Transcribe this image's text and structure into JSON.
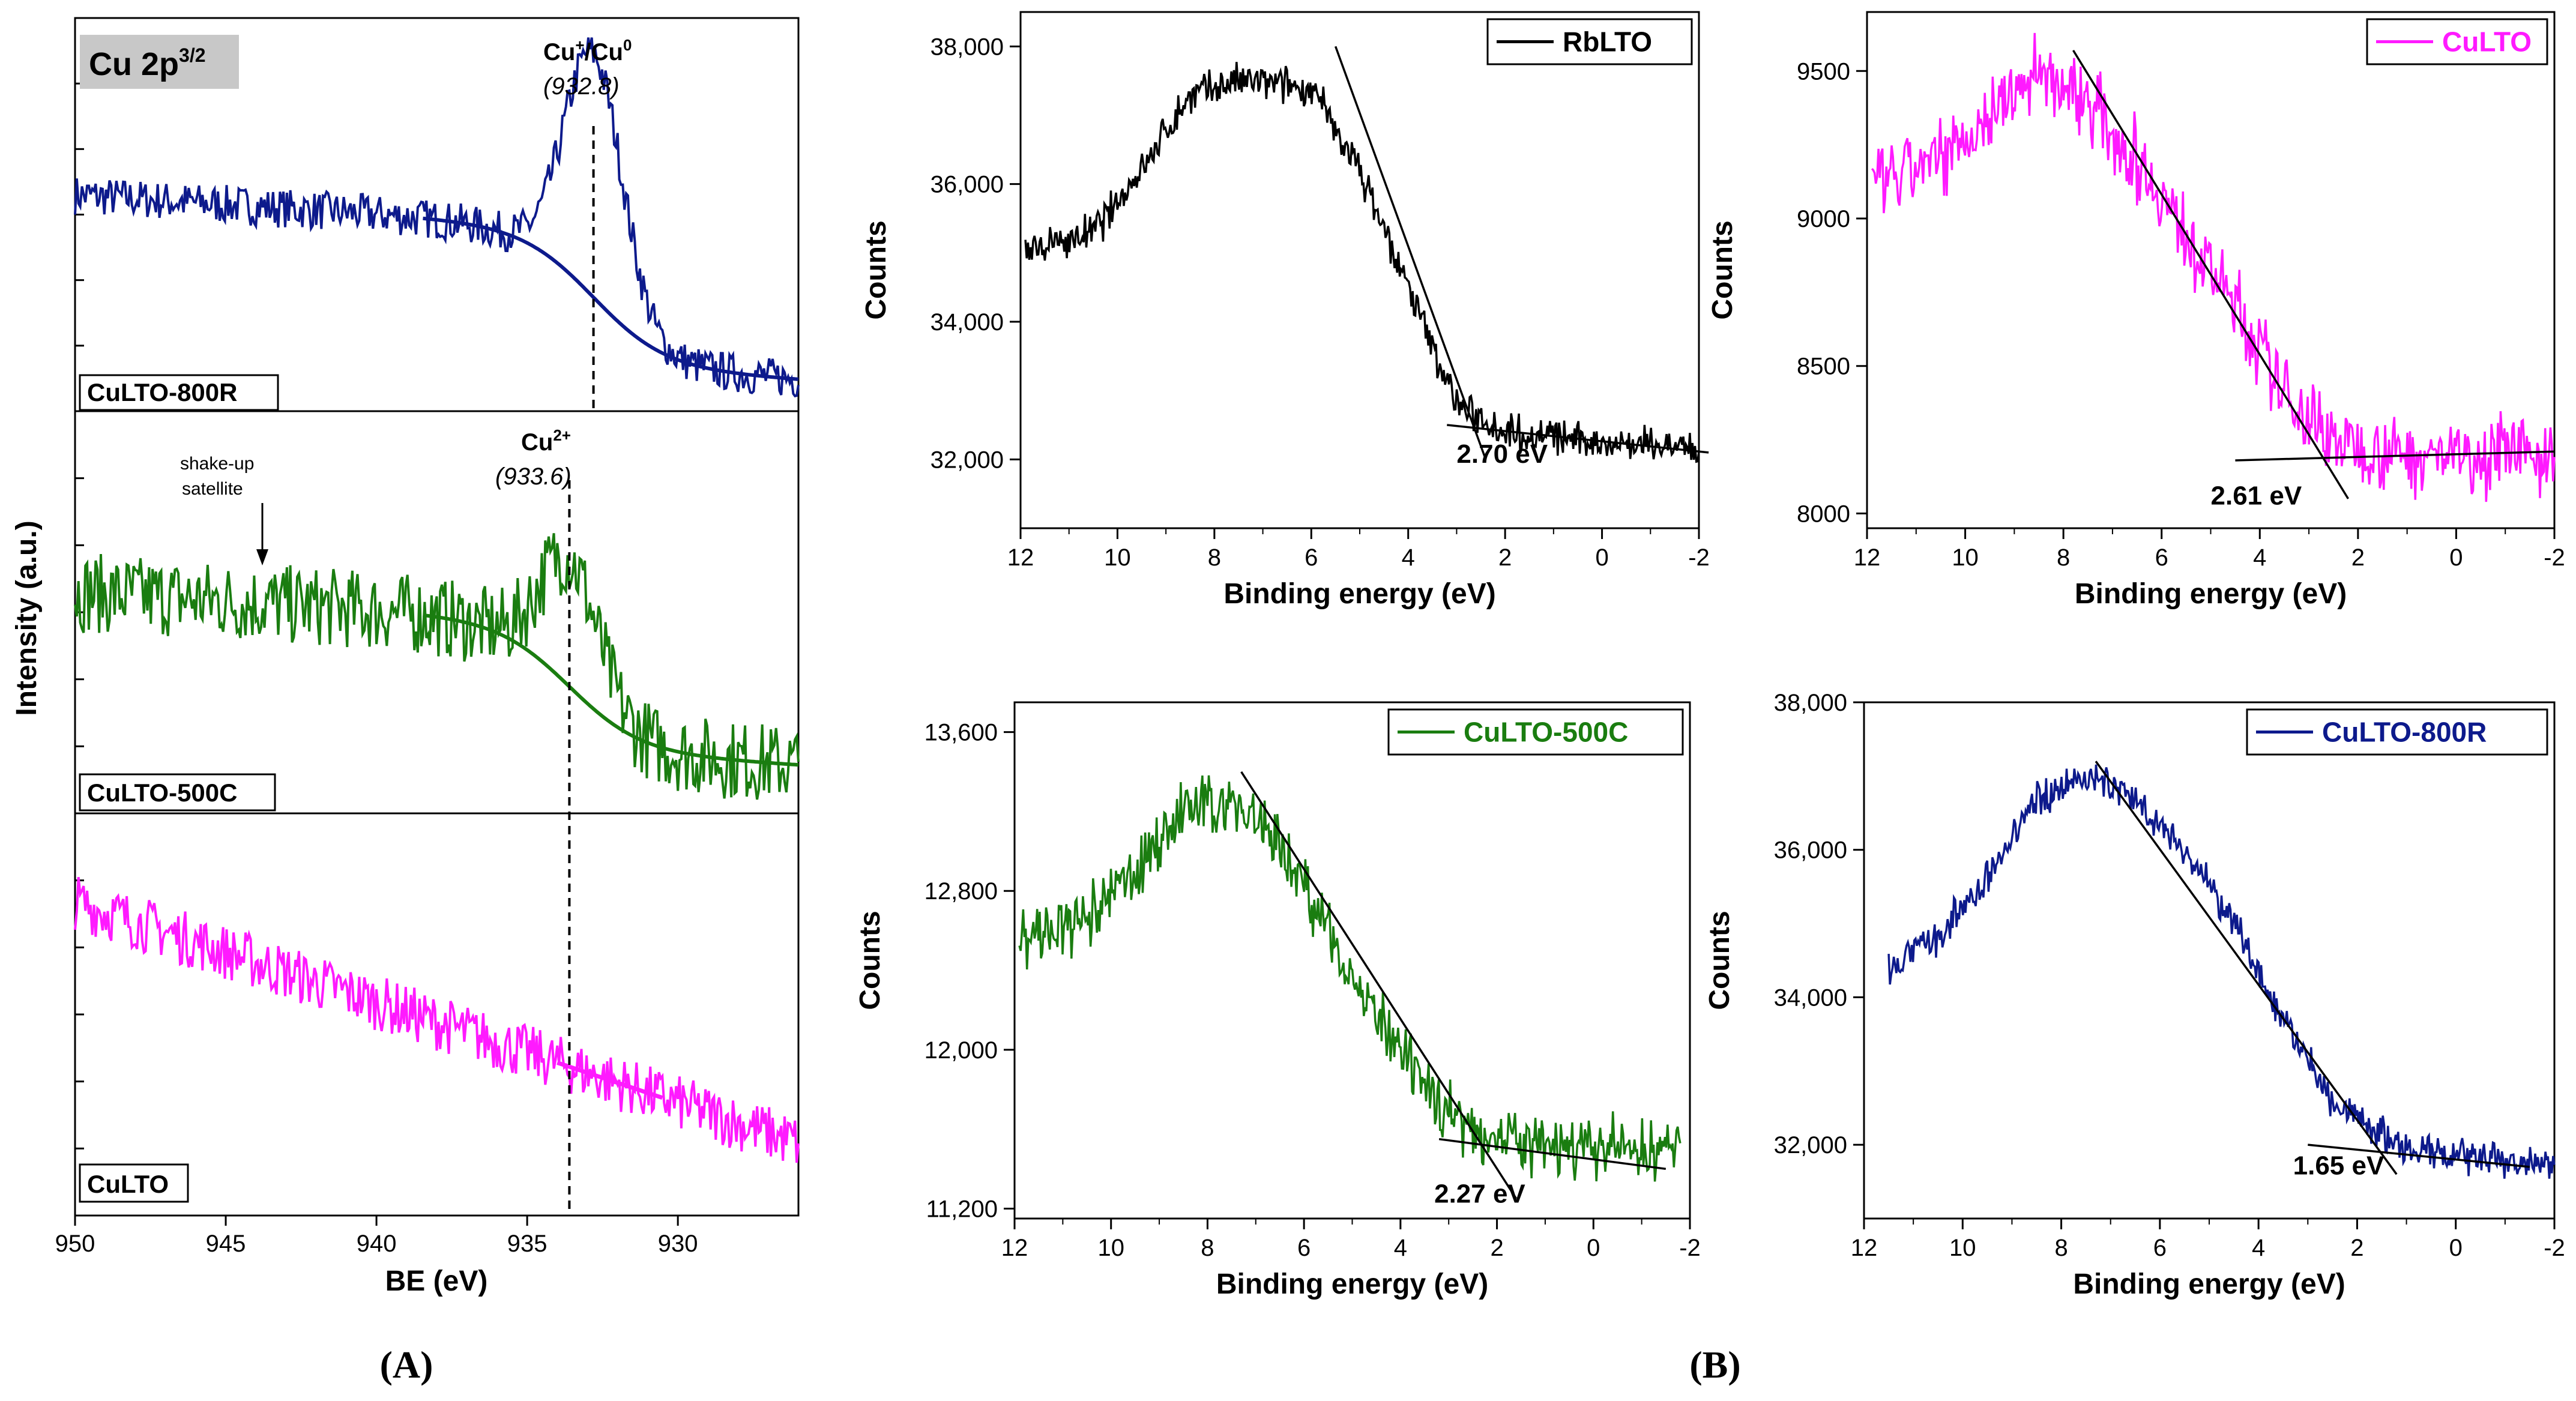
{
  "figure_labels": {
    "panel_a": "(A)",
    "panel_b": "(B)"
  },
  "colors": {
    "navy": "#0d1a8c",
    "green": "#1a7d10",
    "magenta": "#ff1aff",
    "black": "#000000",
    "gray_box": "#c8c8c8"
  },
  "chart_data": [
    {
      "type": "line",
      "panel": "A",
      "title": "Cu 2p3/2",
      "title_parts": {
        "main": "Cu 2p",
        "sup": "3/2"
      },
      "xlabel": "BE (eV)",
      "ylabel": "Intensity (a.u.)",
      "xlim": [
        950,
        926
      ],
      "x_ticks": [
        950,
        945,
        940,
        935,
        930
      ],
      "subplots": [
        {
          "name": "CuLTO-800R",
          "color": "#0d1a8c",
          "peak": {
            "center": 932.8,
            "height": 0.62
          },
          "background_start": 0.55,
          "background_end": 0.08,
          "noise": 0.05
        },
        {
          "name": "CuLTO-500C",
          "color": "#1a7d10",
          "peak": {
            "center": 933.6,
            "height": 0.32
          },
          "background_start": 0.55,
          "background_end": 0.12,
          "noise": 0.1
        },
        {
          "name": "CuLTO",
          "color": "#ff1aff",
          "background_start": 0.78,
          "background_end": 0.18,
          "noise": 0.07
        }
      ],
      "annotations": [
        {
          "main": "Cu",
          "sup": "+",
          "mid": "/Cu",
          "sup2": "0",
          "value": "(932.8)",
          "x": 932.8
        },
        {
          "main": "Cu",
          "sup": "2+",
          "value": "(933.6)",
          "x": 933.6
        },
        {
          "line1": "shake-up",
          "line2": "satellite",
          "x": 943.8
        }
      ]
    },
    {
      "type": "line",
      "panel": "B",
      "name": "RbLTO",
      "color": "#000000",
      "xlabel": "Binding energy (eV)",
      "ylabel": "Counts",
      "xlim": [
        12,
        -2
      ],
      "ylim": [
        31000,
        38500
      ],
      "x_ticks": [
        "12",
        "10",
        "8",
        "6",
        "4",
        "2",
        "0",
        "-2"
      ],
      "y_ticks": [
        "32,000",
        "34,000",
        "36,000",
        "38,000"
      ],
      "y_tick_values": [
        32000,
        34000,
        36000,
        38000
      ],
      "profile": [
        [
          11.9,
          35000
        ],
        [
          10.5,
          35300
        ],
        [
          9.5,
          36200
        ],
        [
          8.5,
          37300
        ],
        [
          7.5,
          37500
        ],
        [
          6,
          37400
        ],
        [
          5,
          36200
        ],
        [
          4,
          34500
        ],
        [
          3,
          32800
        ],
        [
          2,
          32400
        ],
        [
          0,
          32250
        ],
        [
          -2,
          32150
        ]
      ],
      "noise": 220,
      "fit_lines": [
        [
          [
            5.5,
            38000
          ],
          [
            2.4,
            32000
          ]
        ],
        [
          [
            3.2,
            32500
          ],
          [
            -2.2,
            32100
          ]
        ]
      ],
      "band_gap_label": "2.70 eV",
      "band_gap_label_pos": [
        3,
        31950
      ]
    },
    {
      "type": "line",
      "panel": "B",
      "name": "CuLTO",
      "color": "#ff1aff",
      "xlabel": "Binding energy (eV)",
      "ylabel": "Counts",
      "xlim": [
        12,
        -2
      ],
      "ylim": [
        7950,
        9700
      ],
      "x_ticks": [
        "12",
        "10",
        "8",
        "6",
        "4",
        "2",
        "0",
        "-2"
      ],
      "y_ticks": [
        "8000",
        "8500",
        "9000",
        "9500"
      ],
      "y_tick_values": [
        8000,
        8500,
        9000,
        9500
      ],
      "profile": [
        [
          11.9,
          9100
        ],
        [
          10.5,
          9200
        ],
        [
          9.5,
          9350
        ],
        [
          8.5,
          9500
        ],
        [
          7.5,
          9400
        ],
        [
          6.5,
          9200
        ],
        [
          5.5,
          8950
        ],
        [
          4.5,
          8700
        ],
        [
          3.5,
          8400
        ],
        [
          2.5,
          8250
        ],
        [
          1,
          8200
        ],
        [
          -2,
          8200
        ]
      ],
      "noise": 110,
      "fit_lines": [
        [
          [
            7.8,
            9570
          ],
          [
            2.2,
            8050
          ]
        ],
        [
          [
            4.5,
            8180
          ],
          [
            -2,
            8210
          ]
        ]
      ],
      "band_gap_label": "2.61 eV",
      "band_gap_label_pos": [
        5.0,
        8030
      ]
    },
    {
      "type": "line",
      "panel": "B",
      "name": "CuLTO-500C",
      "color": "#1a7d10",
      "xlabel": "Binding energy (eV)",
      "ylabel": "Counts",
      "xlim": [
        12,
        -2
      ],
      "ylim": [
        11150,
        13750
      ],
      "x_ticks": [
        "12",
        "10",
        "8",
        "6",
        "4",
        "2",
        "0",
        "-2"
      ],
      "y_ticks": [
        "11,200",
        "12,000",
        "12,800",
        "13,600"
      ],
      "y_tick_values": [
        11200,
        12000,
        12800,
        13600
      ],
      "profile": [
        [
          11.9,
          12550
        ],
        [
          10.5,
          12650
        ],
        [
          9.5,
          12900
        ],
        [
          8.5,
          13200
        ],
        [
          7.5,
          13250
        ],
        [
          6.5,
          13050
        ],
        [
          5.5,
          12600
        ],
        [
          4.5,
          12150
        ],
        [
          3.5,
          11800
        ],
        [
          2.5,
          11600
        ],
        [
          1,
          11500
        ],
        [
          -1.8,
          11500
        ]
      ],
      "noise": 130,
      "fit_lines": [
        [
          [
            7.3,
            13400
          ],
          [
            1.6,
            11250
          ]
        ],
        [
          [
            3.2,
            11550
          ],
          [
            -1.5,
            11400
          ]
        ]
      ],
      "band_gap_label": "2.27 eV",
      "band_gap_label_pos": [
        3.3,
        11230
      ]
    },
    {
      "type": "line",
      "panel": "B",
      "name": "CuLTO-800R",
      "color": "#0d1a8c",
      "xlabel": "Binding energy (eV)",
      "ylabel": "Counts",
      "xlim": [
        12,
        -2
      ],
      "ylim": [
        31000,
        38000
      ],
      "x_ticks": [
        "12",
        "10",
        "8",
        "6",
        "4",
        "2",
        "0",
        "-2"
      ],
      "y_ticks": [
        "32,000",
        "34,000",
        "36,000",
        "38,000"
      ],
      "y_tick_values": [
        32000,
        34000,
        36000,
        38000
      ],
      "profile": [
        [
          11.5,
          34400
        ],
        [
          10.5,
          34800
        ],
        [
          9.5,
          35600
        ],
        [
          8.5,
          36700
        ],
        [
          7.5,
          37000
        ],
        [
          6.5,
          36700
        ],
        [
          5.5,
          36000
        ],
        [
          4.5,
          35000
        ],
        [
          3.5,
          33700
        ],
        [
          2.5,
          32600
        ],
        [
          1,
          31900
        ],
        [
          -2,
          31700
        ]
      ],
      "noise": 200,
      "fit_lines": [
        [
          [
            7.3,
            37200
          ],
          [
            1.2,
            31600
          ]
        ],
        [
          [
            3,
            32000
          ],
          [
            -1.5,
            31700
          ]
        ]
      ],
      "band_gap_label": "1.65 eV",
      "band_gap_label_pos": [
        3.3,
        31600
      ]
    }
  ]
}
